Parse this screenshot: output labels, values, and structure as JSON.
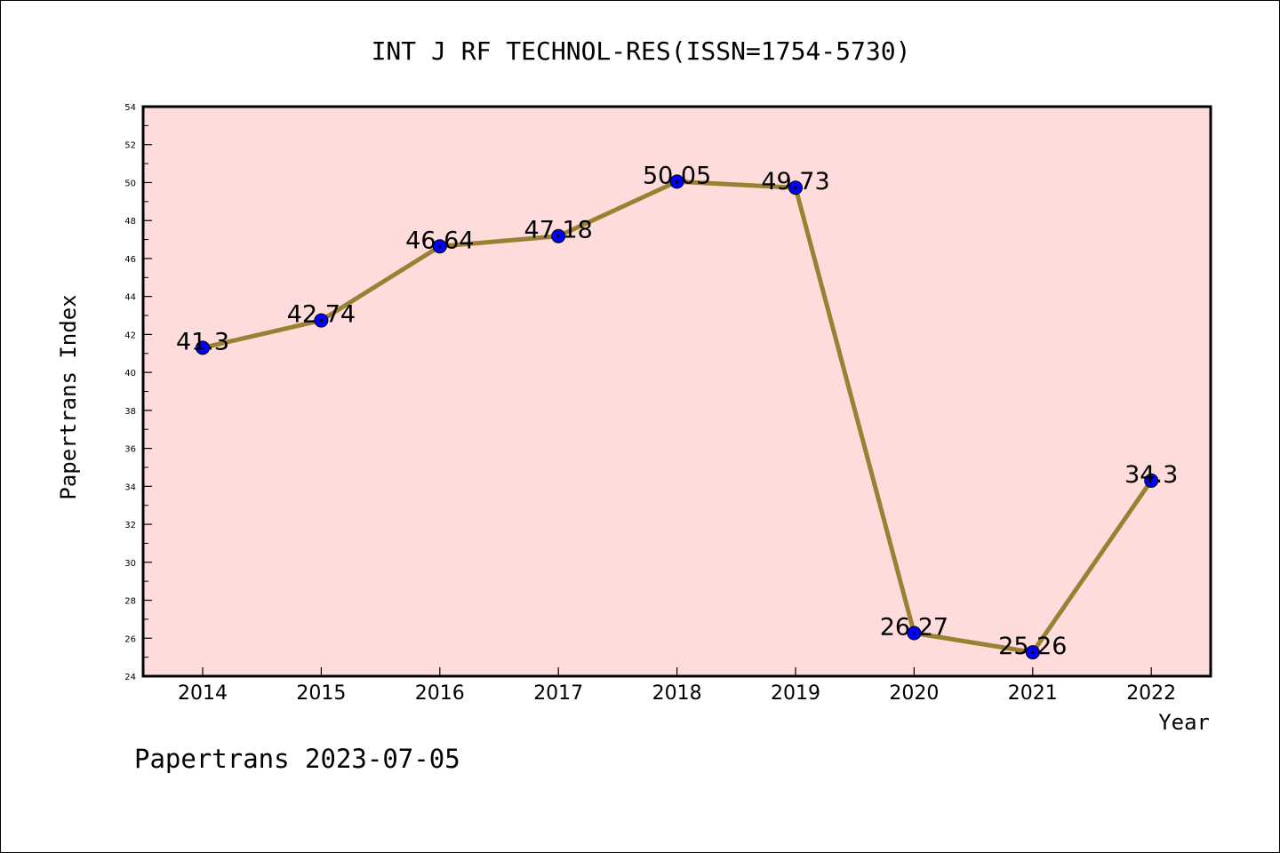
{
  "chart_data": {
    "type": "line",
    "title": "INT J RF TECHNOL-RES(ISSN=1754-5730)",
    "xlabel": "Year",
    "ylabel": "Papertrans Index",
    "footer": "Papertrans 2023-07-05",
    "categories": [
      "2014",
      "2015",
      "2016",
      "2017",
      "2018",
      "2019",
      "2020",
      "2021",
      "2022"
    ],
    "values": [
      41.3,
      42.74,
      46.64,
      47.18,
      50.05,
      49.73,
      26.27,
      25.26,
      34.3
    ],
    "value_labels": [
      "41.3",
      "42.74",
      "46.64",
      "47.18",
      "50.05",
      "49.73",
      "26.27",
      "25.26",
      "34.3"
    ],
    "ylim": [
      24,
      54
    ],
    "yticks": [
      24,
      26,
      28,
      30,
      32,
      34,
      36,
      38,
      40,
      42,
      44,
      46,
      48,
      50,
      52,
      54
    ],
    "grid": false,
    "colors": {
      "plot_background": "#ffdcdc",
      "line": "#998033",
      "marker": "#0000ff"
    }
  }
}
